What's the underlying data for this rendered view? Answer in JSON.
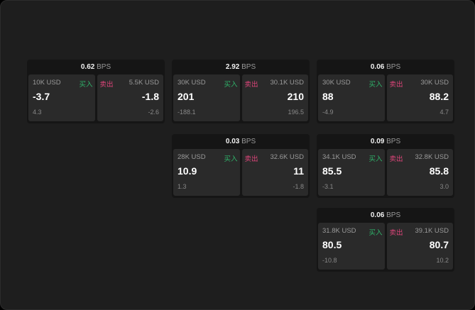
{
  "labels": {
    "buy": "买入",
    "sell": "卖出",
    "unit": "BPS"
  },
  "colors": {
    "buy": "#2fb36a",
    "sell": "#e0457b",
    "background": "#1e1e1e"
  },
  "cards": [
    {
      "spread": "0.62",
      "bid_size": "10K USD",
      "bid": "-3.7",
      "bid_change": "4.3",
      "ask_size": "5.5K USD",
      "ask": "-1.8",
      "ask_change": "-2.6"
    },
    {
      "spread": "2.92",
      "bid_size": "30K USD",
      "bid": "201",
      "bid_change": "-188.1",
      "ask_size": "30.1K USD",
      "ask": "210",
      "ask_change": "196.5"
    },
    {
      "spread": "0.06",
      "bid_size": "30K USD",
      "bid": "88",
      "bid_change": "-4.9",
      "ask_size": "30K USD",
      "ask": "88.2",
      "ask_change": "4.7"
    },
    {
      "spread": "0.03",
      "bid_size": "28K USD",
      "bid": "10.9",
      "bid_change": "1.3",
      "ask_size": "32.6K USD",
      "ask": "11",
      "ask_change": "-1.8"
    },
    {
      "spread": "0.09",
      "bid_size": "34.1K USD",
      "bid": "85.5",
      "bid_change": "-3.1",
      "ask_size": "32.8K USD",
      "ask": "85.8",
      "ask_change": "3.0"
    },
    {
      "spread": "0.06",
      "bid_size": "31.8K USD",
      "bid": "80.5",
      "bid_change": "-10.8",
      "ask_size": "39.1K USD",
      "ask": "80.7",
      "ask_change": "10.2"
    }
  ]
}
